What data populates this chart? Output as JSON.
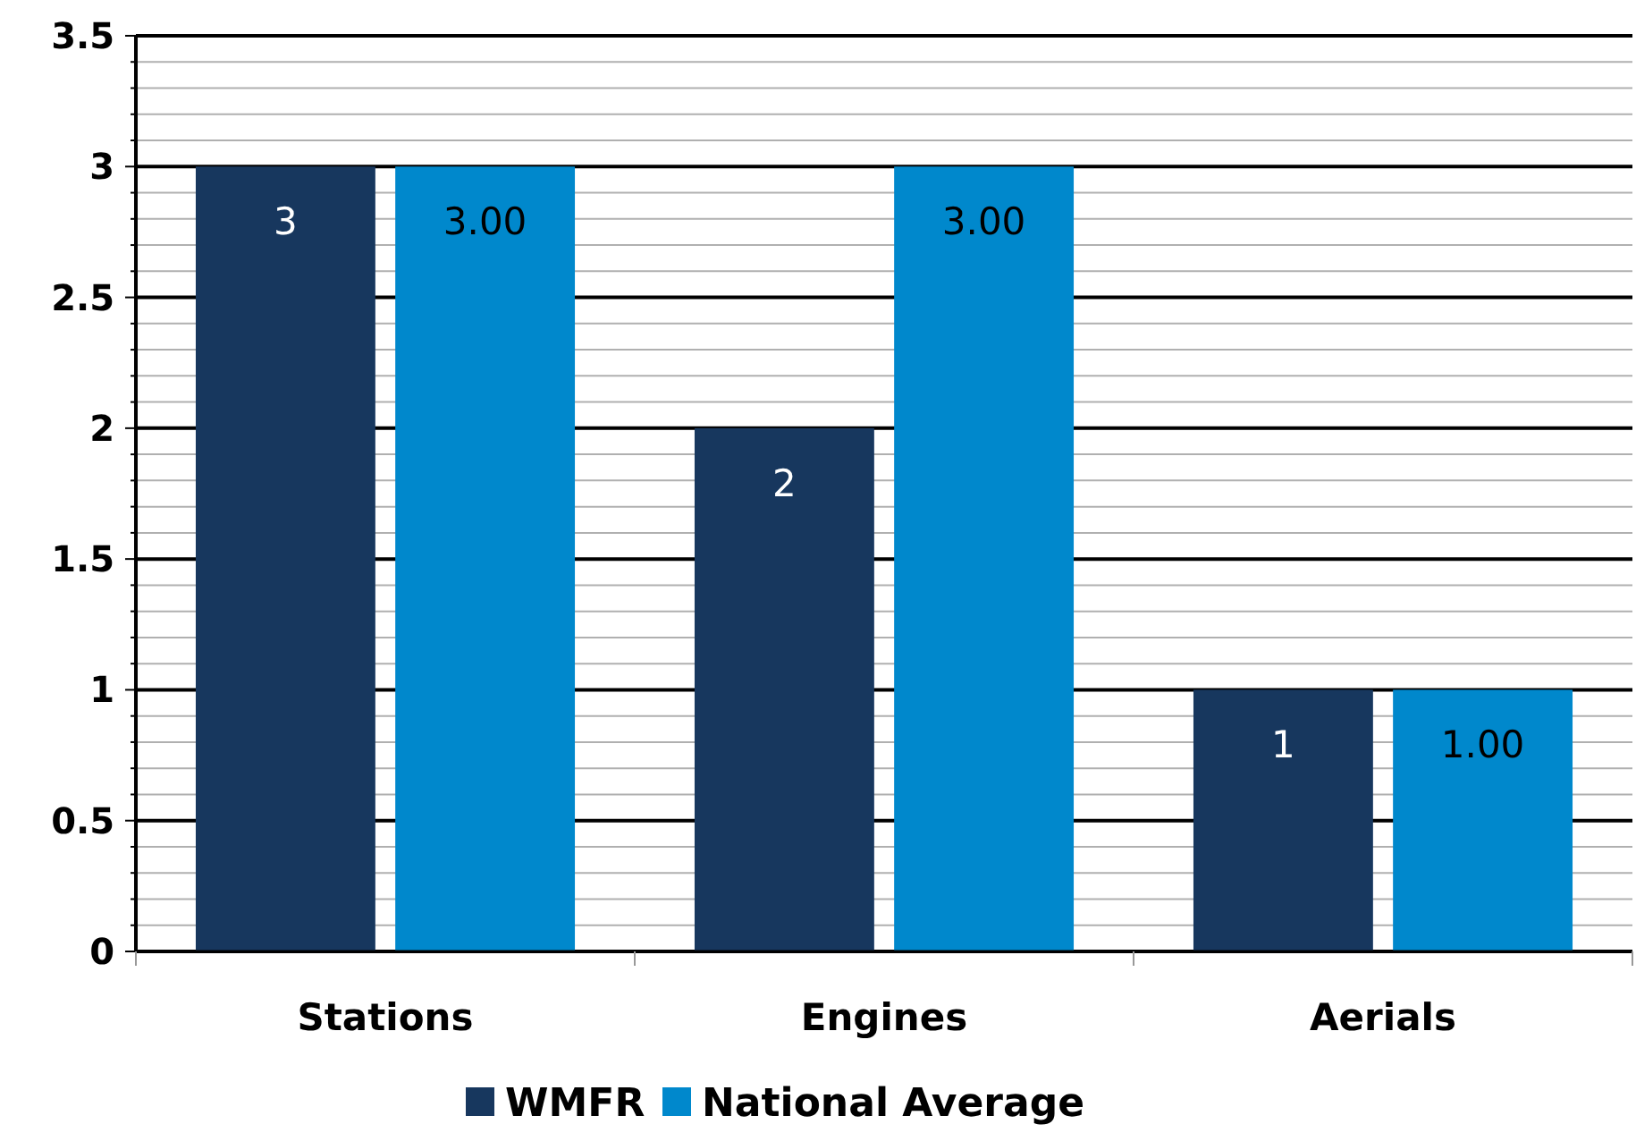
{
  "chart_data": {
    "type": "bar",
    "categories": [
      "Stations",
      "Engines",
      "Aerials"
    ],
    "series": [
      {
        "name": "WMFR",
        "color": "#17375e",
        "values": [
          3,
          2,
          1
        ],
        "value_labels": [
          "3",
          "2",
          "1"
        ]
      },
      {
        "name": "National Average",
        "color": "#0088cc",
        "values": [
          3,
          3,
          1
        ],
        "value_labels": [
          "3.00",
          "3.00",
          "1.00"
        ]
      }
    ],
    "ylim": [
      0,
      3.5
    ],
    "yticks": [
      0,
      {
        "value": 0.1,
        "label": null
      },
      {
        "value": 0.2,
        "label": null
      },
      {
        "value": 0.3,
        "label": null
      },
      {
        "value": 0.4,
        "label": null
      },
      0.5,
      {
        "value": 0.6,
        "label": null
      },
      {
        "value": 0.7,
        "label": null
      },
      {
        "value": 0.8,
        "label": null
      },
      {
        "value": 0.9,
        "label": null
      },
      1,
      {
        "value": 1.1,
        "label": null
      },
      {
        "value": 1.2,
        "label": null
      },
      {
        "value": 1.3,
        "label": null
      },
      {
        "value": 1.4,
        "label": null
      },
      1.5,
      {
        "value": 1.6,
        "label": null
      },
      {
        "value": 1.7,
        "label": null
      },
      {
        "value": 1.8,
        "label": null
      },
      {
        "value": 1.9,
        "label": null
      },
      2,
      {
        "value": 2.1,
        "label": null
      },
      {
        "value": 2.2,
        "label": null
      },
      {
        "value": 2.3,
        "label": null
      },
      {
        "value": 2.4,
        "label": null
      },
      2.5,
      {
        "value": 2.6,
        "label": null
      },
      {
        "value": 2.7,
        "label": null
      },
      {
        "value": 2.8,
        "label": null
      },
      {
        "value": 2.9,
        "label": null
      },
      3,
      {
        "value": 3.1,
        "label": null
      },
      {
        "value": 3.2,
        "label": null
      },
      {
        "value": 3.3,
        "label": null
      },
      {
        "value": 3.4,
        "label": null
      },
      3.5
    ],
    "grid": "y",
    "legend": "bottom"
  }
}
